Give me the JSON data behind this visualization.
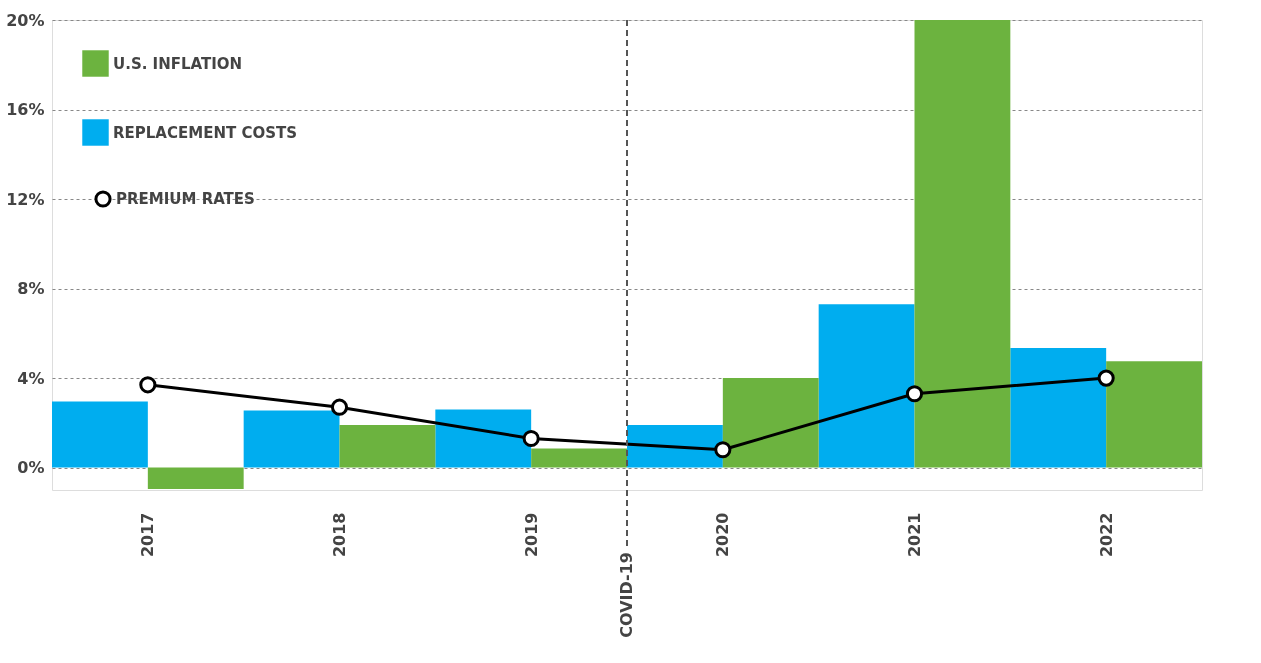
{
  "chart_data": {
    "type": "bar",
    "x": [
      2017,
      2018,
      2019,
      2020,
      2021,
      2022
    ],
    "xlim": [
      2016.5,
      2022.5
    ],
    "xticks": [
      2017,
      2018,
      2019,
      2020,
      2021,
      2022
    ],
    "ylim": [
      -1,
      20
    ],
    "yticks": [
      {
        "value": 0,
        "label": "0%"
      },
      {
        "value": 4,
        "label": "4%"
      },
      {
        "value": 8,
        "label": "8%"
      },
      {
        "value": 12,
        "label": "12%"
      },
      {
        "value": 16,
        "label": "16%"
      },
      {
        "value": 20,
        "label": "20%"
      }
    ],
    "grid": "y",
    "legend": "top left",
    "series": [
      {
        "name": "REPLACEMENT COSTS",
        "color": "#00adef",
        "values": [
          2.95,
          2.55,
          2.6,
          1.9,
          7.3,
          5.35
        ]
      },
      {
        "name": "U.S. INFLATION",
        "color": "#6cb33f",
        "values": [
          -0.95,
          1.9,
          0.85,
          4.0,
          20,
          4.75
        ]
      },
      {
        "name": "PREMIUM RATES",
        "type": "line",
        "marker": "circle",
        "color": "#000000",
        "values": [
          3.7,
          2.7,
          1.3,
          0.8,
          3.3,
          4.0
        ]
      }
    ],
    "ref_lines": [
      {
        "axis": "x",
        "value": 2019.5,
        "label": "COVID-19",
        "color": "#555555",
        "line_style": "dashed"
      }
    ]
  }
}
